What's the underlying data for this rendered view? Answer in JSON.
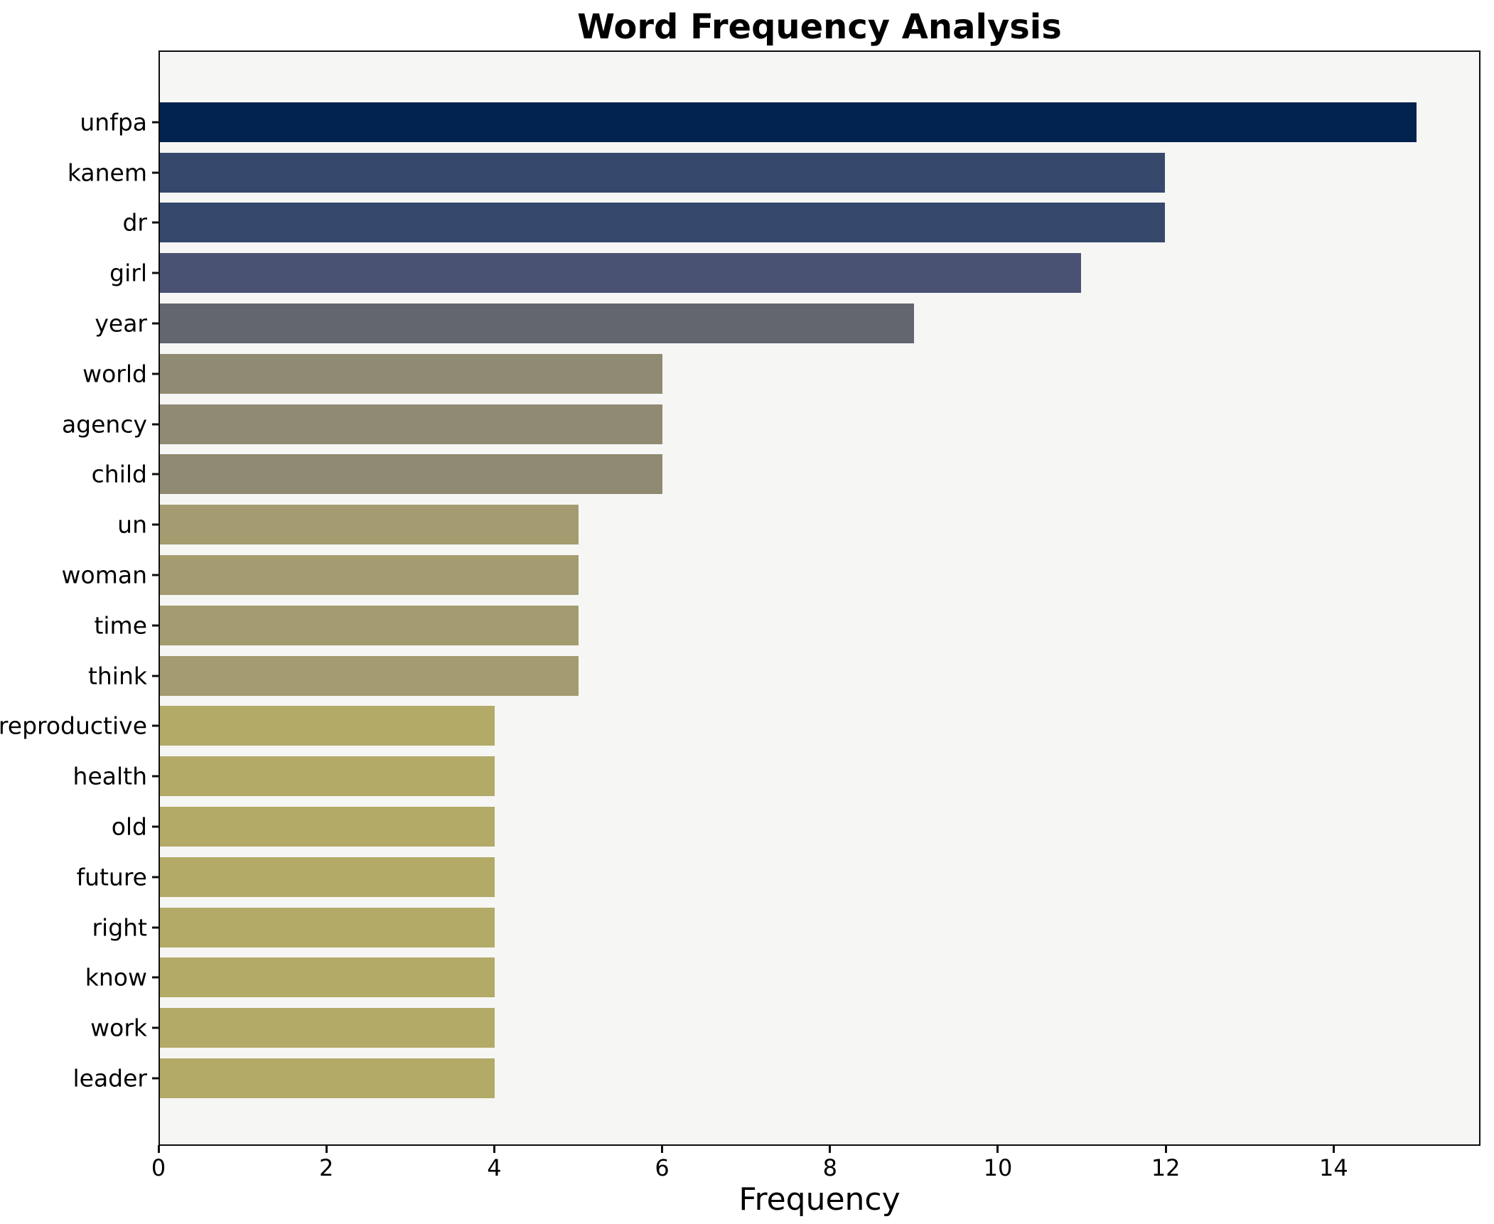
{
  "title": "Word Frequency Analysis",
  "chart_data": {
    "type": "bar",
    "orientation": "horizontal",
    "title": "Word Frequency Analysis",
    "xlabel": "Frequency",
    "ylabel": "",
    "xlim": [
      0,
      15.75
    ],
    "xticks": [
      0,
      2,
      4,
      6,
      8,
      10,
      12,
      14
    ],
    "grid": false,
    "legend": "none",
    "colors": {
      "figure_background": "#ffffff",
      "axes_background": "#f6f6f5",
      "spine": "#0e0e0e",
      "text": "#000000"
    },
    "categories": [
      "unfpa",
      "kanem",
      "dr",
      "girl",
      "year",
      "world",
      "agency",
      "child",
      "un",
      "woman",
      "time",
      "think",
      "reproductive",
      "health",
      "old",
      "future",
      "right",
      "know",
      "work",
      "leader"
    ],
    "values": [
      15,
      12,
      12,
      11,
      9,
      6,
      6,
      6,
      5,
      5,
      5,
      5,
      4,
      4,
      4,
      4,
      4,
      4,
      4,
      4
    ],
    "bar_colors": [
      "#03234f",
      "#36496d",
      "#36496d",
      "#4a5274",
      "#63666f",
      "#908a73",
      "#908a73",
      "#908a73",
      "#a49c70",
      "#a49c70",
      "#a49c70",
      "#a49c70",
      "#b3aa68",
      "#b3aa68",
      "#b3aa68",
      "#b3aa68",
      "#b3aa68",
      "#b3aa68",
      "#b3aa68",
      "#b3aa68"
    ]
  }
}
